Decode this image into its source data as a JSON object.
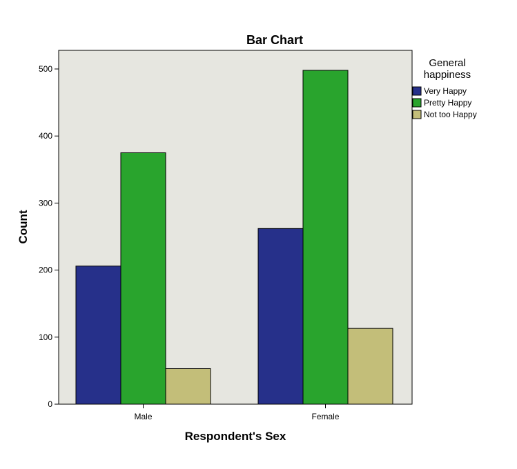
{
  "chart_data": {
    "type": "bar",
    "title": "Bar Chart",
    "xlabel": "Respondent's Sex",
    "ylabel": "Count",
    "categories": [
      "Male",
      "Female"
    ],
    "series": [
      {
        "name": "Very Happy",
        "color": "#26308A",
        "values": [
          206,
          262
        ]
      },
      {
        "name": "Pretty Happy",
        "color": "#29A42D",
        "values": [
          375,
          498
        ]
      },
      {
        "name": "Not too Happy",
        "color": "#C3BE79",
        "values": [
          53,
          113
        ]
      }
    ],
    "ylim": [
      0,
      500
    ],
    "yticks": [
      "0",
      "100",
      "200",
      "300",
      "400",
      "500"
    ],
    "legend": {
      "title_line1": "General",
      "title_line2": "happiness",
      "position": "right"
    },
    "plot_background": "#E6E6E0",
    "grid": false
  }
}
